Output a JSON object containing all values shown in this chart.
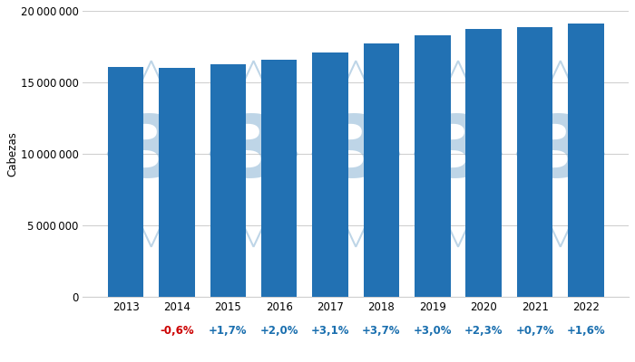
{
  "years": [
    2013,
    2014,
    2015,
    2016,
    2017,
    2018,
    2019,
    2020,
    2021,
    2022
  ],
  "values": [
    16100000,
    16004000,
    16275000,
    16600000,
    17115000,
    17748000,
    18280000,
    18702000,
    18833000,
    19134000
  ],
  "pct_labels": [
    "",
    "-0,6%",
    "+1,7%",
    "+2,0%",
    "+3,1%",
    "+3,7%",
    "+3,0%",
    "+2,3%",
    "+0,7%",
    "+1,6%"
  ],
  "pct_colors": [
    "none",
    "#cc0000",
    "#1a6faf",
    "#1a6faf",
    "#1a6faf",
    "#1a6faf",
    "#1a6faf",
    "#1a6faf",
    "#1a6faf",
    "#1a6faf"
  ],
  "bar_color": "#2271b3",
  "ylabel": "Cabezas",
  "ylim": [
    0,
    20000000
  ],
  "yticks": [
    0,
    5000000,
    10000000,
    15000000,
    20000000
  ],
  "background_color": "#ffffff",
  "grid_color": "#d0d0d0",
  "watermark_color": "#8ab4d4",
  "tick_label_fontsize": 8.5,
  "pct_fontsize": 8.5,
  "ylabel_fontsize": 8.5
}
